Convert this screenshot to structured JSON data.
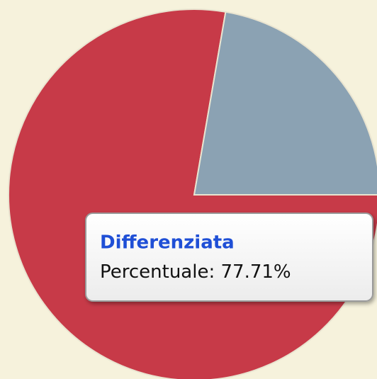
{
  "chart_data": {
    "type": "pie",
    "categories": [
      "Differenziata",
      null
    ],
    "values": [
      77.71,
      22.29
    ],
    "value_labels": [
      "77.71%",
      null
    ],
    "colors": [
      "#c73a48",
      "#8ba2b3"
    ],
    "tooltip": {
      "category_index": 0,
      "label": "Percentuale:"
    }
  }
}
